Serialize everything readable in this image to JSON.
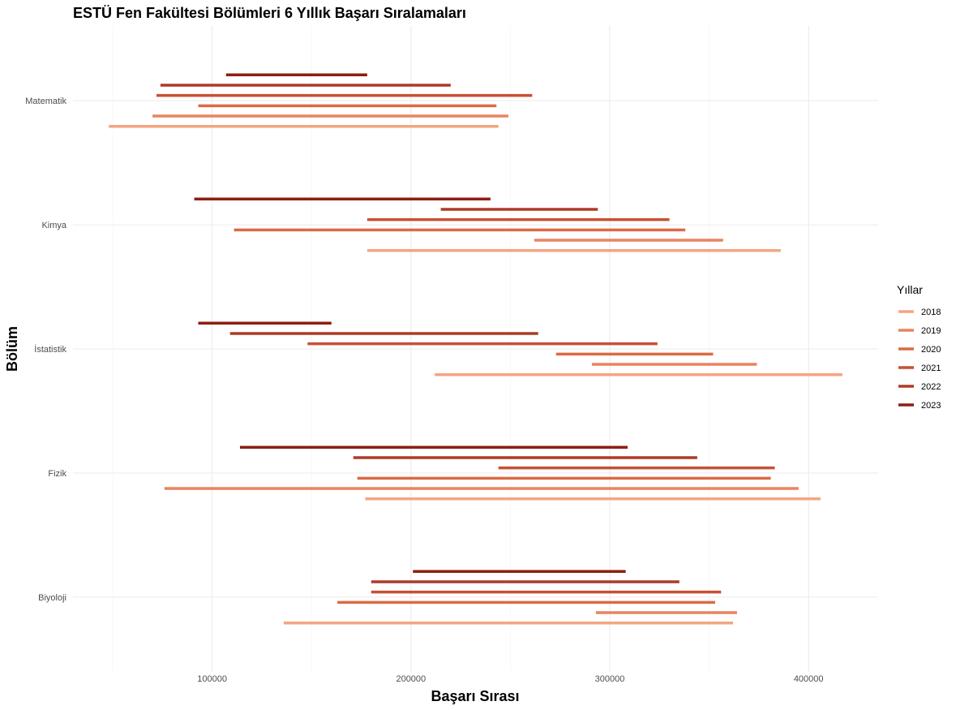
{
  "chart_data": {
    "type": "range-bar",
    "title": "ESTÜ Fen Fakültesi Bölümleri 6 Yıllık Başarı Sıralamaları",
    "xlabel": "Başarı Sırası",
    "ylabel": "Bölüm",
    "xlim": [
      30000,
      435000
    ],
    "x_ticks": [
      100000,
      200000,
      300000,
      400000
    ],
    "x_tick_labels": [
      "100000",
      "200000",
      "300000",
      "400000"
    ],
    "grid": true,
    "legend": {
      "title": "Yıllar",
      "position": "right"
    },
    "categories": [
      "Matematik",
      "Kimya",
      "İstatistik",
      "Fizik",
      "Biyoloji"
    ],
    "series": [
      {
        "name": "2018",
        "color": "#F4A582",
        "ranges": [
          [
            48000,
            244000
          ],
          [
            178000,
            386000
          ],
          [
            212000,
            417000
          ],
          [
            177000,
            406000
          ],
          [
            136000,
            362000
          ]
        ]
      },
      {
        "name": "2019",
        "color": "#E9845F",
        "ranges": [
          [
            70000,
            249000
          ],
          [
            262000,
            357000
          ],
          [
            291000,
            374000
          ],
          [
            76000,
            395000
          ],
          [
            293000,
            364000
          ]
        ]
      },
      {
        "name": "2020",
        "color": "#DB6A45",
        "ranges": [
          [
            93000,
            243000
          ],
          [
            111000,
            338000
          ],
          [
            273000,
            352000
          ],
          [
            173000,
            381000
          ],
          [
            163000,
            353000
          ]
        ]
      },
      {
        "name": "2021",
        "color": "#C75034",
        "ranges": [
          [
            72000,
            261000
          ],
          [
            178000,
            330000
          ],
          [
            148000,
            324000
          ],
          [
            244000,
            383000
          ],
          [
            180000,
            356000
          ]
        ]
      },
      {
        "name": "2022",
        "color": "#AE3A28",
        "ranges": [
          [
            74000,
            220000
          ],
          [
            215000,
            294000
          ],
          [
            109000,
            264000
          ],
          [
            171000,
            344000
          ],
          [
            180000,
            335000
          ]
        ]
      },
      {
        "name": "2023",
        "color": "#8E1E12",
        "ranges": [
          [
            107000,
            178000
          ],
          [
            91000,
            240000
          ],
          [
            93000,
            160000
          ],
          [
            114000,
            309000
          ],
          [
            201000,
            308000
          ]
        ]
      }
    ]
  }
}
